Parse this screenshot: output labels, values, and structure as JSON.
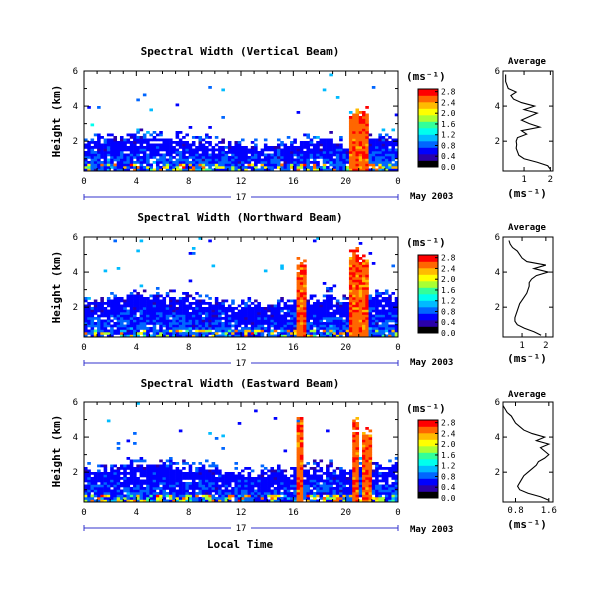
{
  "figure": {
    "xlabel": "Local Time",
    "day_label": "17",
    "date_label": "May 2003",
    "unit_label": "(ms⁻¹)",
    "avg_title": "Average",
    "ylabel": "Height (km)"
  },
  "colors": {
    "scale": [
      "#000000",
      "#2a00aa",
      "#0000ff",
      "#0066ff",
      "#00bbff",
      "#00ffee",
      "#33ff99",
      "#aaff33",
      "#ffff00",
      "#ffbb00",
      "#ff6600",
      "#ff0000"
    ],
    "background": "#ffffff",
    "axis": "#000000",
    "time_arrow": "#3333cc"
  },
  "chart_data": [
    {
      "type": "heatmap",
      "title": "Spectral Width (Vertical Beam)",
      "ylabel": "Height (km)",
      "xlabel": "",
      "x_ticks": [
        "0",
        "4",
        "8",
        "12",
        "16",
        "20",
        "0"
      ],
      "xlim": [
        0,
        24
      ],
      "y_ticks": [
        "2",
        "4",
        "6"
      ],
      "ylim": [
        0.3,
        6.0
      ],
      "colorbar_ticks": [
        "0.0",
        "0.4",
        "0.8",
        "1.2",
        "1.6",
        "2.0",
        "2.4",
        "2.8"
      ],
      "colorbar_range": [
        0.0,
        2.9
      ],
      "profile": {
        "title": "Average",
        "xlabel": "(ms⁻¹)",
        "x_ticks": [
          "1",
          "2"
        ],
        "xlim": [
          0.2,
          2.1
        ],
        "y_ticks": [
          "2",
          "4",
          "6"
        ],
        "ylim": [
          0.3,
          6.0
        ],
        "heights": [
          0.4,
          0.6,
          0.8,
          1.0,
          1.2,
          1.4,
          1.6,
          1.8,
          2.0,
          2.2,
          2.4,
          2.6,
          2.8,
          3.0,
          3.2,
          3.4,
          3.6,
          3.8,
          4.0,
          4.2,
          4.4,
          4.6,
          4.8,
          5.0,
          5.2,
          5.4,
          5.6,
          5.8
        ],
        "values": [
          2.0,
          1.9,
          1.5,
          1.0,
          0.8,
          0.75,
          0.7,
          0.72,
          0.7,
          0.75,
          1.1,
          0.9,
          1.6,
          1.2,
          0.9,
          1.2,
          1.5,
          1.0,
          1.4,
          0.9,
          0.6,
          0.5,
          0.7,
          0.4,
          0.35,
          0.3,
          0.3,
          0.3
        ]
      },
      "spikes": [
        {
          "time": 20.8,
          "top": 3.8,
          "half_width": 0.5
        },
        {
          "time": 21.6,
          "top": 4.0,
          "half_width": 0.25
        }
      ],
      "layer_top": 1.7,
      "seed": 11
    },
    {
      "type": "heatmap",
      "title": "Spectral Width (Northward Beam)",
      "ylabel": "Height (km)",
      "xlabel": "",
      "x_ticks": [
        "0",
        "4",
        "8",
        "12",
        "16",
        "20",
        "0"
      ],
      "xlim": [
        0,
        24
      ],
      "y_ticks": [
        "2",
        "4",
        "6"
      ],
      "ylim": [
        0.3,
        6.0
      ],
      "colorbar_ticks": [
        "0.0",
        "0.4",
        "0.8",
        "1.2",
        "1.6",
        "2.0",
        "2.4",
        "2.8"
      ],
      "colorbar_range": [
        0.0,
        2.9
      ],
      "profile": {
        "title": "Average",
        "xlabel": "(ms⁻¹)",
        "x_ticks": [
          "1",
          "2"
        ],
        "xlim": [
          0.2,
          2.3
        ],
        "y_ticks": [
          "2",
          "4",
          "6"
        ],
        "ylim": [
          0.3,
          6.0
        ],
        "heights": [
          0.4,
          0.6,
          0.8,
          1.0,
          1.2,
          1.4,
          1.6,
          1.8,
          2.0,
          2.2,
          2.4,
          2.6,
          2.8,
          3.0,
          3.2,
          3.4,
          3.6,
          3.8,
          4.0,
          4.2,
          4.4,
          4.6,
          4.8,
          5.0,
          5.2,
          5.4,
          5.6,
          5.8
        ],
        "values": [
          1.8,
          1.5,
          1.1,
          0.8,
          0.7,
          0.7,
          0.75,
          0.8,
          0.85,
          0.9,
          1.0,
          1.1,
          1.2,
          1.25,
          1.3,
          1.3,
          1.4,
          1.6,
          2.1,
          1.5,
          2.0,
          1.2,
          1.0,
          0.9,
          0.8,
          0.6,
          0.5,
          0.45
        ]
      },
      "spikes": [
        {
          "time": 16.6,
          "top": 4.6,
          "half_width": 0.3
        },
        {
          "time": 20.6,
          "top": 5.5,
          "half_width": 0.4
        },
        {
          "time": 21.4,
          "top": 5.0,
          "half_width": 0.35
        }
      ],
      "layer_top": 2.1,
      "seed": 23
    },
    {
      "type": "heatmap",
      "title": "Spectral Width (Eastward Beam)",
      "ylabel": "Height (km)",
      "xlabel": "Local Time",
      "x_ticks": [
        "0",
        "4",
        "8",
        "12",
        "16",
        "20",
        "0"
      ],
      "xlim": [
        0,
        24
      ],
      "y_ticks": [
        "2",
        "4",
        "6"
      ],
      "ylim": [
        0.3,
        6.0
      ],
      "colorbar_ticks": [
        "0.0",
        "0.4",
        "0.8",
        "1.2",
        "1.6",
        "2.0",
        "2.4",
        "2.8"
      ],
      "colorbar_range": [
        0.0,
        2.9
      ],
      "profile": {
        "title": "Average",
        "xlabel": "(ms⁻¹)",
        "x_ticks": [
          "0.8",
          "1.6"
        ],
        "xlim": [
          0.5,
          1.7
        ],
        "y_ticks": [
          "2",
          "4",
          "6"
        ],
        "ylim": [
          0.3,
          6.0
        ],
        "heights": [
          0.4,
          0.6,
          0.8,
          1.0,
          1.2,
          1.4,
          1.6,
          1.8,
          2.0,
          2.2,
          2.4,
          2.6,
          2.8,
          3.0,
          3.2,
          3.4,
          3.6,
          3.8,
          4.0,
          4.2,
          4.4,
          4.6,
          4.8,
          5.0,
          5.2,
          5.4,
          5.6,
          5.8
        ],
        "values": [
          1.6,
          1.4,
          1.1,
          0.9,
          0.85,
          0.9,
          0.95,
          1.0,
          1.1,
          1.2,
          1.3,
          1.35,
          1.5,
          1.6,
          1.5,
          1.4,
          1.6,
          1.3,
          1.5,
          1.2,
          1.0,
          0.9,
          0.8,
          0.75,
          0.7,
          0.6,
          0.55,
          0.5
        ]
      },
      "spikes": [
        {
          "time": 16.5,
          "top": 5.2,
          "half_width": 0.25
        },
        {
          "time": 20.8,
          "top": 5.0,
          "half_width": 0.3
        },
        {
          "time": 21.6,
          "top": 4.5,
          "half_width": 0.3
        }
      ],
      "layer_top": 1.9,
      "seed": 37
    }
  ]
}
